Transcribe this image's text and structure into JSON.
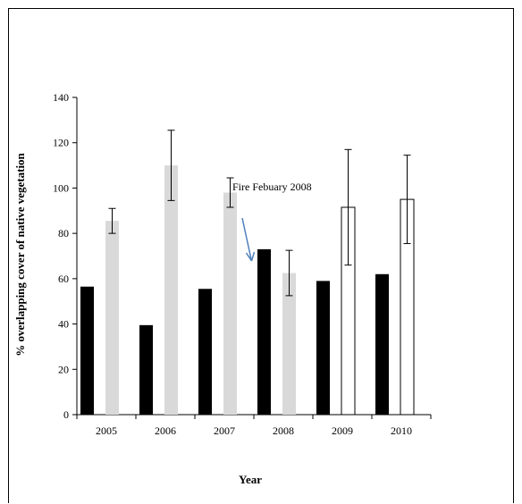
{
  "chart_data": {
    "type": "bar",
    "categories": [
      "2005",
      "2006",
      "2007",
      "2008",
      "2009",
      "2010"
    ],
    "ylabel": "% overlapping cover of  native vegetation",
    "xlabel": "Year",
    "ylim": [
      0,
      140
    ],
    "yticks": [
      0,
      20,
      40,
      60,
      80,
      100,
      120,
      140
    ],
    "grid": false,
    "legend": "none",
    "annotation": {
      "text": "Fire Febuary 2008",
      "arrow": true
    },
    "series": [
      {
        "values": [
          56.5,
          39.5,
          55.5,
          73,
          59,
          62
        ],
        "color": "#000000",
        "error": [
          null,
          null,
          null,
          null,
          null,
          null
        ]
      },
      {
        "values": [
          85.5,
          110,
          98,
          62.5,
          91.5,
          95
        ],
        "error": [
          5.5,
          15.5,
          6.5,
          10,
          25.5,
          19.5
        ],
        "colors": [
          "#d9d9d9",
          "#d9d9d9",
          "#d9d9d9",
          "#d9d9d9",
          "#ffffff",
          "#ffffff"
        ],
        "edge": [
          "none",
          "none",
          "none",
          "none",
          "#000000",
          "#000000"
        ]
      }
    ],
    "colors": {
      "arrow": "#4f81bd"
    }
  }
}
